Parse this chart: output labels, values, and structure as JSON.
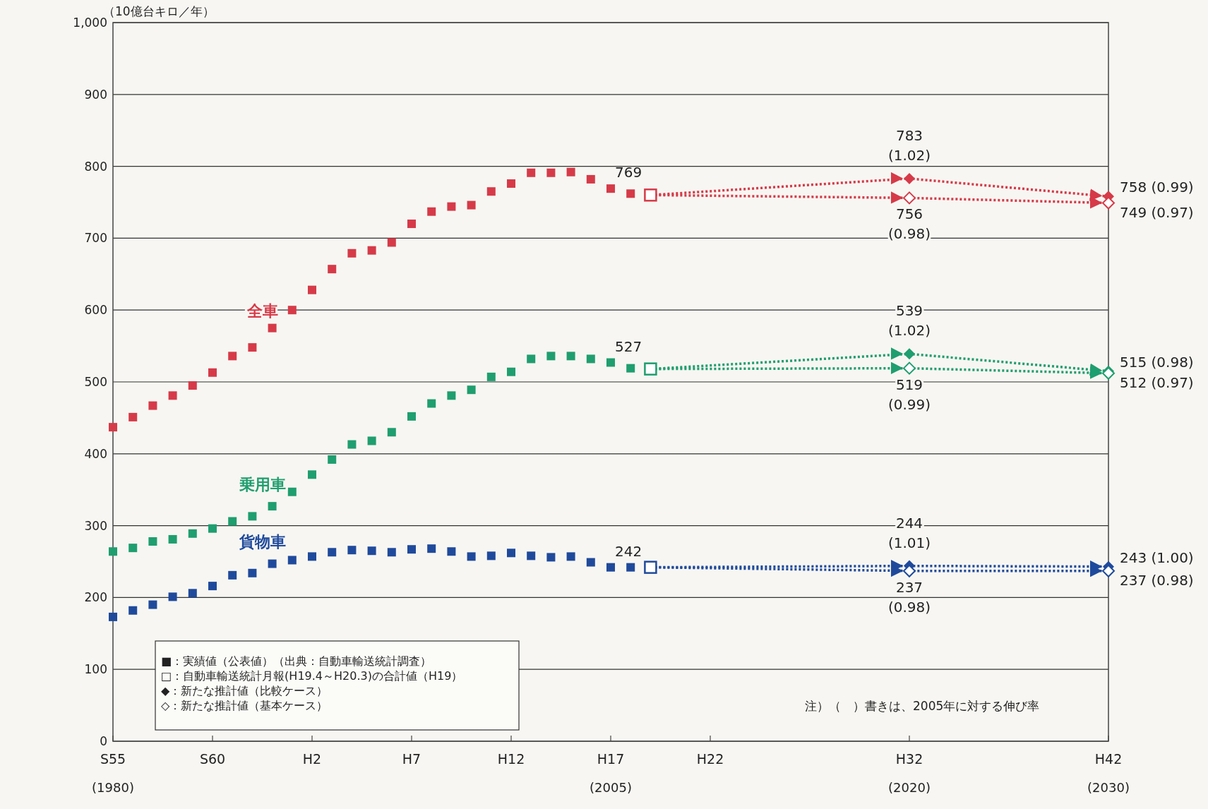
{
  "chart_data": {
    "type": "scatter",
    "ylabel": "（10億台キロ／年）",
    "categories": [
      "S55\n(1980)",
      null,
      null,
      null,
      null,
      "S60",
      null,
      null,
      null,
      null,
      "H2",
      null,
      null,
      null,
      null,
      "H7",
      null,
      null,
      null,
      null,
      "H12",
      null,
      null,
      null,
      null,
      "H17\n(2005)",
      null,
      null,
      null,
      null,
      "H22",
      null,
      null,
      null,
      null,
      null,
      null,
      null,
      null,
      null,
      "H32\n(2020)",
      null,
      null,
      null,
      null,
      null,
      null,
      null,
      null,
      null,
      "H42\n(2030)"
    ],
    "ylim": [
      0,
      1000
    ],
    "yticks": [
      0,
      100,
      200,
      300,
      400,
      500,
      600,
      700,
      800,
      900,
      {
        "value": 1000,
        "label": "1,000"
      }
    ],
    "grid": "y",
    "series": [
      {
        "name": "全車",
        "type": "scatter",
        "marker": "square",
        "color": "#d63a48",
        "values": [
          437,
          451,
          467,
          481,
          495,
          513,
          536,
          548,
          575,
          600,
          628,
          657,
          679,
          683,
          694,
          720,
          737,
          744,
          746,
          765,
          776,
          791,
          791,
          792,
          782,
          769,
          762,
          null,
          null,
          null,
          null,
          null,
          null,
          null,
          null,
          null,
          null,
          null,
          null,
          null,
          null,
          null,
          null,
          null,
          null,
          null,
          null,
          null,
          null,
          null,
          null
        ],
        "value_labels": [
          null,
          null,
          null,
          null,
          null,
          null,
          null,
          null,
          null,
          null,
          null,
          null,
          null,
          null,
          null,
          null,
          null,
          null,
          null,
          null,
          null,
          null,
          null,
          null,
          null,
          "769",
          null,
          null,
          null,
          null,
          null,
          null,
          null,
          null,
          null,
          null,
          null,
          null,
          null,
          null,
          null,
          null,
          null,
          null,
          null,
          null,
          null,
          null,
          null,
          null,
          null
        ]
      },
      {
        "type": "scatter",
        "marker": "square-open",
        "color": "#d63a48",
        "values": [
          null,
          null,
          null,
          null,
          null,
          null,
          null,
          null,
          null,
          null,
          null,
          null,
          null,
          null,
          null,
          null,
          null,
          null,
          null,
          null,
          null,
          null,
          null,
          null,
          null,
          null,
          null,
          760,
          null,
          null,
          null,
          null,
          null,
          null,
          null,
          null,
          null,
          null,
          null,
          null,
          null,
          null,
          null,
          null,
          null,
          null,
          null,
          null,
          null,
          null,
          null
        ]
      },
      {
        "type": "line",
        "marker": "none",
        "line_style": "dotted",
        "color": "#d63a48",
        "values": [
          null,
          null,
          null,
          null,
          null,
          null,
          null,
          null,
          null,
          null,
          null,
          null,
          null,
          null,
          null,
          null,
          null,
          null,
          null,
          null,
          null,
          null,
          null,
          null,
          null,
          null,
          null,
          760,
          null,
          null,
          null,
          null,
          null,
          null,
          null,
          null,
          null,
          null,
          null,
          null,
          783,
          null,
          null,
          null,
          null,
          null,
          null,
          null,
          null,
          null,
          758
        ]
      },
      {
        "type": "line",
        "marker": "none",
        "line_style": "dotted",
        "color": "#d63a48",
        "values": [
          null,
          null,
          null,
          null,
          null,
          null,
          null,
          null,
          null,
          null,
          null,
          null,
          null,
          null,
          null,
          null,
          null,
          null,
          null,
          null,
          null,
          null,
          null,
          null,
          null,
          null,
          null,
          760,
          null,
          null,
          null,
          null,
          null,
          null,
          null,
          null,
          null,
          null,
          null,
          null,
          756,
          null,
          null,
          null,
          null,
          null,
          null,
          null,
          null,
          null,
          749
        ]
      },
      {
        "type": "scatter",
        "marker": "diamond",
        "color": "#d63a48",
        "values": [
          null,
          null,
          null,
          null,
          null,
          null,
          null,
          null,
          null,
          null,
          null,
          null,
          null,
          null,
          null,
          null,
          null,
          null,
          null,
          null,
          null,
          null,
          null,
          null,
          null,
          null,
          null,
          null,
          null,
          null,
          null,
          null,
          null,
          null,
          null,
          null,
          null,
          null,
          null,
          null,
          783,
          null,
          null,
          null,
          null,
          null,
          null,
          null,
          null,
          null,
          758
        ],
        "value_labels": [
          null,
          null,
          null,
          null,
          null,
          null,
          null,
          null,
          null,
          null,
          null,
          null,
          null,
          null,
          null,
          null,
          null,
          null,
          null,
          null,
          null,
          null,
          null,
          null,
          null,
          null,
          null,
          null,
          null,
          null,
          null,
          null,
          null,
          null,
          null,
          null,
          null,
          null,
          null,
          null,
          "783\n(1.02)",
          null,
          null,
          null,
          null,
          null,
          null,
          null,
          null,
          null,
          "758 (0.99)"
        ]
      },
      {
        "type": "scatter",
        "marker": "diamond-open",
        "color": "#d63a48",
        "values": [
          null,
          null,
          null,
          null,
          null,
          null,
          null,
          null,
          null,
          null,
          null,
          null,
          null,
          null,
          null,
          null,
          null,
          null,
          null,
          null,
          null,
          null,
          null,
          null,
          null,
          null,
          null,
          null,
          null,
          null,
          null,
          null,
          null,
          null,
          null,
          null,
          null,
          null,
          null,
          null,
          756,
          null,
          null,
          null,
          null,
          null,
          null,
          null,
          null,
          null,
          749
        ],
        "value_labels": [
          null,
          null,
          null,
          null,
          null,
          null,
          null,
          null,
          null,
          null,
          null,
          null,
          null,
          null,
          null,
          null,
          null,
          null,
          null,
          null,
          null,
          null,
          null,
          null,
          null,
          null,
          null,
          null,
          null,
          null,
          null,
          null,
          null,
          null,
          null,
          null,
          null,
          null,
          null,
          null,
          "756\n(0.98)",
          null,
          null,
          null,
          null,
          null,
          null,
          null,
          null,
          null,
          "749 (0.97)"
        ]
      },
      {
        "name": "乗用車",
        "type": "scatter",
        "marker": "square",
        "color": "#1f9e70",
        "values": [
          264,
          269,
          278,
          281,
          289,
          296,
          306,
          313,
          327,
          347,
          371,
          392,
          413,
          418,
          430,
          452,
          470,
          481,
          489,
          507,
          514,
          532,
          536,
          536,
          532,
          527,
          519,
          null,
          null,
          null,
          null,
          null,
          null,
          null,
          null,
          null,
          null,
          null,
          null,
          null,
          null,
          null,
          null,
          null,
          null,
          null,
          null,
          null,
          null,
          null,
          null
        ],
        "value_labels": [
          null,
          null,
          null,
          null,
          null,
          null,
          null,
          null,
          null,
          null,
          null,
          null,
          null,
          null,
          null,
          null,
          null,
          null,
          null,
          null,
          null,
          null,
          null,
          null,
          null,
          "527",
          null,
          null,
          null,
          null,
          null,
          null,
          null,
          null,
          null,
          null,
          null,
          null,
          null,
          null,
          null,
          null,
          null,
          null,
          null,
          null,
          null,
          null,
          null,
          null,
          null
        ]
      },
      {
        "type": "scatter",
        "marker": "square-open",
        "color": "#1f9e70",
        "values": [
          null,
          null,
          null,
          null,
          null,
          null,
          null,
          null,
          null,
          null,
          null,
          null,
          null,
          null,
          null,
          null,
          null,
          null,
          null,
          null,
          null,
          null,
          null,
          null,
          null,
          null,
          null,
          518,
          null,
          null,
          null,
          null,
          null,
          null,
          null,
          null,
          null,
          null,
          null,
          null,
          null,
          null,
          null,
          null,
          null,
          null,
          null,
          null,
          null,
          null,
          null
        ]
      },
      {
        "type": "line",
        "marker": "none",
        "line_style": "dotted",
        "color": "#1f9e70",
        "values": [
          null,
          null,
          null,
          null,
          null,
          null,
          null,
          null,
          null,
          null,
          null,
          null,
          null,
          null,
          null,
          null,
          null,
          null,
          null,
          null,
          null,
          null,
          null,
          null,
          null,
          null,
          null,
          518,
          null,
          null,
          null,
          null,
          null,
          null,
          null,
          null,
          null,
          null,
          null,
          null,
          539,
          null,
          null,
          null,
          null,
          null,
          null,
          null,
          null,
          null,
          515
        ]
      },
      {
        "type": "line",
        "marker": "none",
        "line_style": "dotted",
        "color": "#1f9e70",
        "values": [
          null,
          null,
          null,
          null,
          null,
          null,
          null,
          null,
          null,
          null,
          null,
          null,
          null,
          null,
          null,
          null,
          null,
          null,
          null,
          null,
          null,
          null,
          null,
          null,
          null,
          null,
          null,
          518,
          null,
          null,
          null,
          null,
          null,
          null,
          null,
          null,
          null,
          null,
          null,
          null,
          519,
          null,
          null,
          null,
          null,
          null,
          null,
          null,
          null,
          null,
          512
        ]
      },
      {
        "type": "scatter",
        "marker": "diamond",
        "color": "#1f9e70",
        "values": [
          null,
          null,
          null,
          null,
          null,
          null,
          null,
          null,
          null,
          null,
          null,
          null,
          null,
          null,
          null,
          null,
          null,
          null,
          null,
          null,
          null,
          null,
          null,
          null,
          null,
          null,
          null,
          null,
          null,
          null,
          null,
          null,
          null,
          null,
          null,
          null,
          null,
          null,
          null,
          null,
          539,
          null,
          null,
          null,
          null,
          null,
          null,
          null,
          null,
          null,
          515
        ],
        "value_labels": [
          null,
          null,
          null,
          null,
          null,
          null,
          null,
          null,
          null,
          null,
          null,
          null,
          null,
          null,
          null,
          null,
          null,
          null,
          null,
          null,
          null,
          null,
          null,
          null,
          null,
          null,
          null,
          null,
          null,
          null,
          null,
          null,
          null,
          null,
          null,
          null,
          null,
          null,
          null,
          null,
          "539\n(1.02)",
          null,
          null,
          null,
          null,
          null,
          null,
          null,
          null,
          null,
          "515 (0.98)"
        ]
      },
      {
        "type": "scatter",
        "marker": "diamond-open",
        "color": "#1f9e70",
        "values": [
          null,
          null,
          null,
          null,
          null,
          null,
          null,
          null,
          null,
          null,
          null,
          null,
          null,
          null,
          null,
          null,
          null,
          null,
          null,
          null,
          null,
          null,
          null,
          null,
          null,
          null,
          null,
          null,
          null,
          null,
          null,
          null,
          null,
          null,
          null,
          null,
          null,
          null,
          null,
          null,
          519,
          null,
          null,
          null,
          null,
          null,
          null,
          null,
          null,
          null,
          512
        ],
        "value_labels": [
          null,
          null,
          null,
          null,
          null,
          null,
          null,
          null,
          null,
          null,
          null,
          null,
          null,
          null,
          null,
          null,
          null,
          null,
          null,
          null,
          null,
          null,
          null,
          null,
          null,
          null,
          null,
          null,
          null,
          null,
          null,
          null,
          null,
          null,
          null,
          null,
          null,
          null,
          null,
          null,
          "519\n(0.99)",
          null,
          null,
          null,
          null,
          null,
          null,
          null,
          null,
          null,
          "512 (0.97)"
        ]
      },
      {
        "name": "貨物車",
        "type": "scatter",
        "marker": "square",
        "color": "#1f4a9c",
        "values": [
          173,
          182,
          190,
          201,
          206,
          216,
          231,
          234,
          247,
          252,
          257,
          263,
          266,
          265,
          263,
          267,
          268,
          264,
          257,
          258,
          262,
          258,
          256,
          257,
          249,
          242,
          242,
          null,
          null,
          null,
          null,
          null,
          null,
          null,
          null,
          null,
          null,
          null,
          null,
          null,
          null,
          null,
          null,
          null,
          null,
          null,
          null,
          null,
          null,
          null,
          null
        ],
        "value_labels": [
          null,
          null,
          null,
          null,
          null,
          null,
          null,
          null,
          null,
          null,
          null,
          null,
          null,
          null,
          null,
          null,
          null,
          null,
          null,
          null,
          null,
          null,
          null,
          null,
          null,
          "242",
          null,
          null,
          null,
          null,
          null,
          null,
          null,
          null,
          null,
          null,
          null,
          null,
          null,
          null,
          null,
          null,
          null,
          null,
          null,
          null,
          null,
          null,
          null,
          null,
          null
        ]
      },
      {
        "type": "scatter",
        "marker": "square-open",
        "color": "#1f4a9c",
        "values": [
          null,
          null,
          null,
          null,
          null,
          null,
          null,
          null,
          null,
          null,
          null,
          null,
          null,
          null,
          null,
          null,
          null,
          null,
          null,
          null,
          null,
          null,
          null,
          null,
          null,
          null,
          null,
          242,
          null,
          null,
          null,
          null,
          null,
          null,
          null,
          null,
          null,
          null,
          null,
          null,
          null,
          null,
          null,
          null,
          null,
          null,
          null,
          null,
          null,
          null,
          null
        ]
      },
      {
        "type": "line",
        "marker": "none",
        "line_style": "dotted",
        "color": "#1f4a9c",
        "values": [
          null,
          null,
          null,
          null,
          null,
          null,
          null,
          null,
          null,
          null,
          null,
          null,
          null,
          null,
          null,
          null,
          null,
          null,
          null,
          null,
          null,
          null,
          null,
          null,
          null,
          null,
          null,
          242,
          null,
          null,
          null,
          null,
          null,
          null,
          null,
          null,
          null,
          null,
          null,
          null,
          244,
          null,
          null,
          null,
          null,
          null,
          null,
          null,
          null,
          null,
          243
        ]
      },
      {
        "type": "line",
        "marker": "none",
        "line_style": "dotted",
        "color": "#1f4a9c",
        "values": [
          null,
          null,
          null,
          null,
          null,
          null,
          null,
          null,
          null,
          null,
          null,
          null,
          null,
          null,
          null,
          null,
          null,
          null,
          null,
          null,
          null,
          null,
          null,
          null,
          null,
          null,
          null,
          242,
          null,
          null,
          null,
          null,
          null,
          null,
          null,
          null,
          null,
          null,
          null,
          null,
          237,
          null,
          null,
          null,
          null,
          null,
          null,
          null,
          null,
          null,
          237
        ]
      },
      {
        "type": "scatter",
        "marker": "diamond",
        "color": "#1f4a9c",
        "values": [
          null,
          null,
          null,
          null,
          null,
          null,
          null,
          null,
          null,
          null,
          null,
          null,
          null,
          null,
          null,
          null,
          null,
          null,
          null,
          null,
          null,
          null,
          null,
          null,
          null,
          null,
          null,
          null,
          null,
          null,
          null,
          null,
          null,
          null,
          null,
          null,
          null,
          null,
          null,
          null,
          244,
          null,
          null,
          null,
          null,
          null,
          null,
          null,
          null,
          null,
          243
        ],
        "value_labels": [
          null,
          null,
          null,
          null,
          null,
          null,
          null,
          null,
          null,
          null,
          null,
          null,
          null,
          null,
          null,
          null,
          null,
          null,
          null,
          null,
          null,
          null,
          null,
          null,
          null,
          null,
          null,
          null,
          null,
          null,
          null,
          null,
          null,
          null,
          null,
          null,
          null,
          null,
          null,
          null,
          "244\n(1.01)",
          null,
          null,
          null,
          null,
          null,
          null,
          null,
          null,
          null,
          "243 (1.00)"
        ]
      },
      {
        "type": "scatter",
        "marker": "diamond-open",
        "color": "#1f4a9c",
        "values": [
          null,
          null,
          null,
          null,
          null,
          null,
          null,
          null,
          null,
          null,
          null,
          null,
          null,
          null,
          null,
          null,
          null,
          null,
          null,
          null,
          null,
          null,
          null,
          null,
          null,
          null,
          null,
          null,
          null,
          null,
          null,
          null,
          null,
          null,
          null,
          null,
          null,
          null,
          null,
          null,
          237,
          null,
          null,
          null,
          null,
          null,
          null,
          null,
          null,
          null,
          237
        ],
        "value_labels": [
          null,
          null,
          null,
          null,
          null,
          null,
          null,
          null,
          null,
          null,
          null,
          null,
          null,
          null,
          null,
          null,
          null,
          null,
          null,
          null,
          null,
          null,
          null,
          null,
          null,
          null,
          null,
          null,
          null,
          null,
          null,
          null,
          null,
          null,
          null,
          null,
          null,
          null,
          null,
          null,
          "237\n(0.98)",
          null,
          null,
          null,
          null,
          null,
          null,
          null,
          null,
          null,
          "237 (0.98)"
        ]
      }
    ],
    "annotations": [
      "■：実績値（公表値）（出典：自動車輸送統計調査）",
      "□：自動車輸送統計月報(H19.4～H20.3)の合計値（H19）",
      "◆：新たな推計値（比較ケース）",
      "◇：新たな推計値（基本ケース）",
      "注）（　）書きは、2005年に対する伸び率"
    ]
  }
}
